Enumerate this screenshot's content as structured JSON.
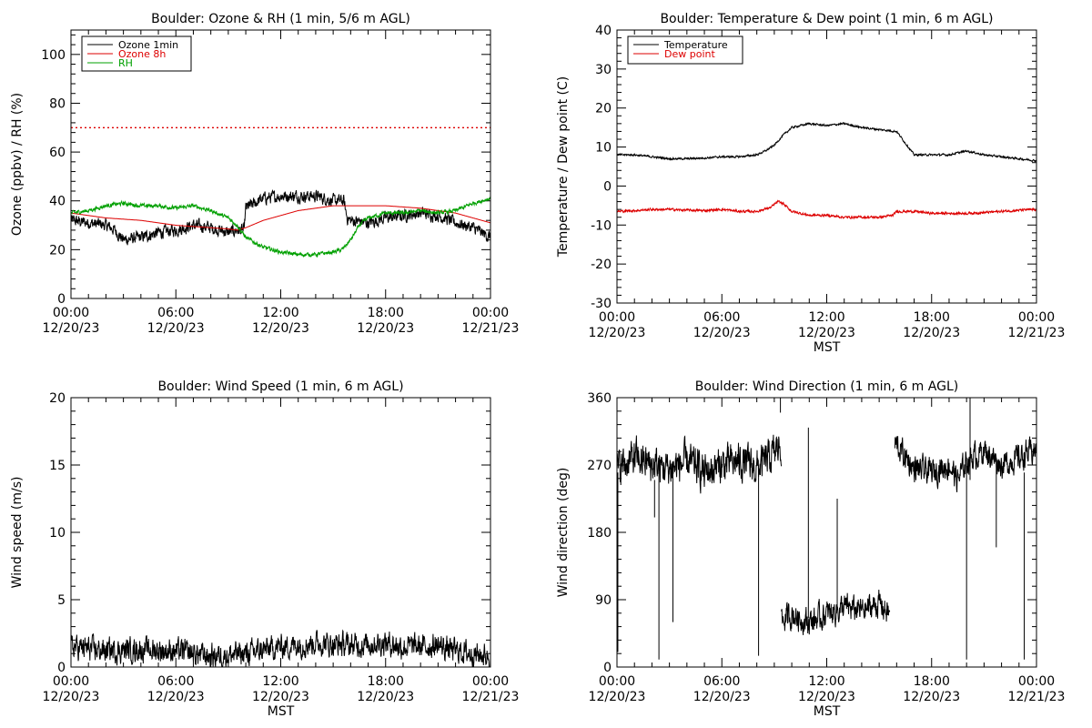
{
  "chart_data": [
    {
      "type": "line",
      "title": "Boulder: Ozone & RH (1 min, 5/6 m AGL)",
      "xlabel": "",
      "ylabel": "Ozone (ppbv) / RH (%)",
      "xlim": [
        "12/20/23 00:00",
        "12/21/23 00:00"
      ],
      "ylim": [
        0,
        110
      ],
      "y_ticks": [
        0,
        20,
        40,
        60,
        80,
        100
      ],
      "x_tick_labels": [
        [
          "00:00",
          "12/20/23"
        ],
        [
          "06:00",
          "12/20/23"
        ],
        [
          "12:00",
          "12/20/23"
        ],
        [
          "18:00",
          "12/20/23"
        ],
        [
          "00:00",
          "12/21/23"
        ]
      ],
      "legend": {
        "position": "top-left",
        "entries": [
          {
            "label": "Ozone 1min",
            "color": "#000000"
          },
          {
            "label": "Ozone 8h",
            "color": "#dd0000"
          },
          {
            "label": "RH",
            "color": "#00a000"
          }
        ]
      },
      "reference_line": {
        "y": 70,
        "color": "#dd0000",
        "style": "dotted"
      },
      "series": [
        {
          "name": "Ozone 1min",
          "color": "#000000",
          "noise": 2.5,
          "hours": [
            0,
            1,
            2,
            2.5,
            3,
            4,
            5,
            6,
            7,
            8,
            9,
            9.5,
            9.9,
            10,
            11,
            12,
            13,
            14,
            15,
            15.6,
            15.8,
            16,
            17,
            18,
            19,
            20,
            21,
            22,
            23,
            24
          ],
          "values": [
            32,
            31,
            30,
            28,
            24,
            25,
            27,
            28,
            30,
            29,
            27,
            28,
            28,
            37,
            41,
            42,
            42,
            42,
            40,
            40,
            33,
            32,
            31,
            33,
            34,
            35,
            34,
            31,
            29,
            25
          ]
        },
        {
          "name": "Ozone 8h",
          "color": "#dd0000",
          "noise": 0,
          "hours": [
            0,
            2,
            4,
            6,
            8,
            9,
            9.5,
            10,
            11,
            12,
            13,
            14,
            15,
            16,
            17,
            18,
            19,
            20,
            21,
            22,
            23,
            24
          ],
          "values": [
            35,
            33,
            32,
            30,
            29,
            28.5,
            28,
            29,
            32,
            34,
            36,
            37,
            38,
            38,
            38,
            38,
            37.5,
            37,
            36,
            35,
            33,
            31
          ]
        },
        {
          "name": "RH",
          "color": "#00a000",
          "noise": 0.8,
          "hours": [
            0,
            1,
            2,
            3,
            4,
            5,
            6,
            7,
            8,
            9,
            9.5,
            10,
            11,
            12,
            13,
            14,
            15,
            15.5,
            16,
            16.5,
            17,
            18,
            19,
            20,
            21,
            22,
            23,
            24
          ],
          "values": [
            35,
            36,
            38,
            39,
            38,
            38,
            37,
            38,
            36,
            33,
            30,
            25,
            21,
            19,
            18,
            18,
            19,
            20,
            24,
            30,
            33,
            35,
            35,
            36,
            35,
            36,
            39,
            41
          ]
        }
      ]
    },
    {
      "type": "line",
      "title": "Boulder: Temperature & Dew point (1 min, 6 m AGL)",
      "xlabel": "MST",
      "ylabel": "Temperature / Dew point (C)",
      "xlim": [
        "12/20/23 00:00",
        "12/21/23 00:00"
      ],
      "ylim": [
        -30,
        40
      ],
      "y_ticks": [
        -30,
        -20,
        -10,
        0,
        10,
        20,
        30,
        40
      ],
      "x_tick_labels": [
        [
          "00:00",
          "12/20/23"
        ],
        [
          "06:00",
          "12/20/23"
        ],
        [
          "12:00",
          "12/20/23"
        ],
        [
          "18:00",
          "12/20/23"
        ],
        [
          "00:00",
          "12/21/23"
        ]
      ],
      "legend": {
        "position": "top-left",
        "entries": [
          {
            "label": "Temperature",
            "color": "#000000"
          },
          {
            "label": "Dew point",
            "color": "#dd0000"
          }
        ]
      },
      "series": [
        {
          "name": "Temperature",
          "color": "#000000",
          "noise": 0.25,
          "hours": [
            0,
            1,
            2,
            3,
            4,
            5,
            6,
            7,
            8,
            8.5,
            9,
            9.5,
            10,
            11,
            12,
            13,
            14,
            15,
            16,
            16.5,
            17,
            18,
            19,
            19.5,
            20,
            21,
            22,
            23,
            24
          ],
          "values": [
            8,
            8,
            7.5,
            7,
            7,
            7.2,
            7.5,
            7.5,
            8,
            9,
            10.5,
            13,
            15,
            16,
            15.5,
            16,
            15,
            14.5,
            14,
            11,
            8,
            8,
            8,
            8.5,
            9,
            8,
            7.5,
            7,
            6.5
          ]
        },
        {
          "name": "Dew point",
          "color": "#dd0000",
          "noise": 0.3,
          "hours": [
            0,
            1,
            2,
            3,
            4,
            5,
            6,
            7,
            8,
            8.8,
            9.2,
            9.5,
            10,
            11,
            12,
            13,
            14,
            15,
            15.8,
            16,
            17,
            18,
            19,
            20,
            21,
            22,
            23,
            24
          ],
          "values": [
            -6.5,
            -6.3,
            -6,
            -6,
            -6.2,
            -6.3,
            -6,
            -6.5,
            -6.5,
            -5.5,
            -4,
            -4.5,
            -6.5,
            -7.5,
            -7.5,
            -8,
            -8,
            -8,
            -7.5,
            -6.5,
            -6.5,
            -7,
            -7,
            -7,
            -6.8,
            -6.5,
            -6.2,
            -6
          ]
        }
      ]
    },
    {
      "type": "line",
      "title": "Boulder: Wind Speed (1 min, 6 m AGL)",
      "xlabel": "MST",
      "ylabel": "Wind speed (m/s)",
      "xlim": [
        "12/20/23 00:00",
        "12/21/23 00:00"
      ],
      "ylim": [
        0,
        20
      ],
      "y_ticks": [
        0,
        5,
        10,
        15,
        20
      ],
      "x_tick_labels": [
        [
          "00:00",
          "12/20/23"
        ],
        [
          "06:00",
          "12/20/23"
        ],
        [
          "12:00",
          "12/20/23"
        ],
        [
          "18:00",
          "12/20/23"
        ],
        [
          "00:00",
          "12/21/23"
        ]
      ],
      "series": [
        {
          "name": "",
          "color": "#000000",
          "noise": 0.9,
          "hours": [
            0,
            2,
            4,
            6,
            8,
            10,
            12,
            14,
            16,
            18,
            19,
            20,
            21,
            22,
            23,
            24
          ],
          "values": [
            1.5,
            1.2,
            1.3,
            1.2,
            0.8,
            1.0,
            1.5,
            1.8,
            1.6,
            1.8,
            1.5,
            1.5,
            1.6,
            1.2,
            1.0,
            0.8
          ]
        }
      ]
    },
    {
      "type": "line",
      "title": "Boulder: Wind Direction (1 min, 6 m AGL)",
      "xlabel": "MST",
      "ylabel": "Wind direction (deg)",
      "xlim": [
        "12/20/23 00:00",
        "12/21/23 00:00"
      ],
      "ylim": [
        0,
        360
      ],
      "y_ticks": [
        0,
        90,
        180,
        270,
        360
      ],
      "x_tick_labels": [
        [
          "00:00",
          "12/20/23"
        ],
        [
          "06:00",
          "12/20/23"
        ],
        [
          "12:00",
          "12/20/23"
        ],
        [
          "18:00",
          "12/20/23"
        ],
        [
          "00:00",
          "12/21/23"
        ]
      ],
      "series": [
        {
          "name": "",
          "color": "#000000",
          "noise": 25,
          "hours": [
            0,
            1,
            2,
            3,
            4,
            5,
            6,
            7,
            8,
            9,
            9.4
          ],
          "values": [
            265,
            280,
            270,
            265,
            275,
            260,
            270,
            275,
            265,
            285,
            300
          ]
        },
        {
          "name": "",
          "color": "#000000",
          "noise": 18,
          "hours": [
            9.4,
            10,
            11,
            12,
            13,
            14,
            15,
            15.6
          ],
          "values": [
            60,
            70,
            60,
            70,
            80,
            75,
            85,
            70
          ]
        },
        {
          "name": "",
          "color": "#000000",
          "noise": 18,
          "hours": [
            15.9,
            16.2,
            17,
            18,
            19,
            19.5,
            20,
            21,
            22,
            23,
            24
          ],
          "values": [
            300,
            290,
            265,
            260,
            270,
            250,
            275,
            290,
            270,
            280,
            290
          ]
        }
      ],
      "spikes": [
        {
          "hour": 0.05,
          "from": 260,
          "to": 20
        },
        {
          "hour": 2.15,
          "from": 250,
          "to": 200
        },
        {
          "hour": 2.4,
          "from": 270,
          "to": 10
        },
        {
          "hour": 3.2,
          "from": 270,
          "to": 60
        },
        {
          "hour": 8.1,
          "from": 270,
          "to": 15
        },
        {
          "hour": 9.35,
          "from": 340,
          "to": 360
        },
        {
          "hour": 10.95,
          "from": 65,
          "to": 320
        },
        {
          "hour": 12.6,
          "from": 80,
          "to": 225
        },
        {
          "hour": 20.0,
          "from": 280,
          "to": 10
        },
        {
          "hour": 20.2,
          "from": 250,
          "to": 360
        },
        {
          "hour": 23.3,
          "from": 260,
          "to": 10
        },
        {
          "hour": 21.7,
          "from": 280,
          "to": 160
        }
      ]
    }
  ]
}
